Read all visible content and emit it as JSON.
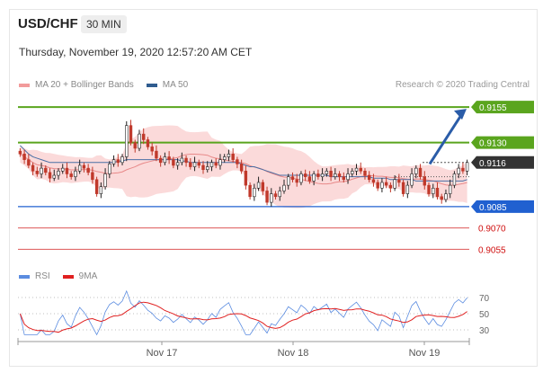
{
  "header": {
    "pair": "USD/CHF",
    "timeframe": "30 MIN",
    "datetime": "Thursday, November 19, 2020 12:57:20 AM CET"
  },
  "legend": {
    "ma20_label": "MA 20 + Bollinger Bands",
    "ma50_label": "MA 50",
    "research": "Research © 2020 Trading Central"
  },
  "rsi_legend": {
    "rsi_label": "RSI",
    "ma_label": "9MA"
  },
  "colors": {
    "bull": "#222222",
    "bear": "#c0392b",
    "bands": "#fbdada",
    "ma20": "#e06666",
    "ma50": "#4a6fa5",
    "resistance": "#5aa51e",
    "support": "#2060d0",
    "target": "#d01010",
    "current": "#333333",
    "rsi": "#5b8ce0",
    "rsi_ma": "#e02020",
    "arrow": "#2a5ca8"
  },
  "chart_data": [
    {
      "type": "candlestick",
      "yrange": [
        9047,
        9162
      ],
      "x_ticks": [
        "Nov 17",
        "Nov 18",
        "Nov 19"
      ],
      "price_levels": [
        {
          "value": "0.9155",
          "kind": "resistance"
        },
        {
          "value": "0.9130",
          "kind": "resistance"
        },
        {
          "value": "0.9116",
          "kind": "current"
        },
        {
          "value": "0.9085",
          "kind": "support"
        },
        {
          "value": "0.9070",
          "kind": "target"
        },
        {
          "value": "0.9055",
          "kind": "target"
        }
      ],
      "projection": {
        "from": 9115,
        "to": 9155
      },
      "closes": [
        9122,
        9118,
        9114,
        9110,
        9108,
        9112,
        9109,
        9105,
        9107,
        9110,
        9112,
        9108,
        9106,
        9110,
        9114,
        9112,
        9109,
        9104,
        9094,
        9099,
        9108,
        9115,
        9118,
        9116,
        9120,
        9142,
        9130,
        9126,
        9136,
        9132,
        9127,
        9124,
        9119,
        9116,
        9120,
        9118,
        9114,
        9116,
        9119,
        9116,
        9113,
        9116,
        9114,
        9111,
        9113,
        9116,
        9114,
        9118,
        9120,
        9122,
        9118,
        9115,
        9110,
        9100,
        9092,
        9098,
        9102,
        9096,
        9088,
        9094,
        9092,
        9096,
        9100,
        9106,
        9104,
        9102,
        9108,
        9106,
        9103,
        9108,
        9106,
        9108,
        9110,
        9106,
        9108,
        9106,
        9104,
        9108,
        9110,
        9112,
        9110,
        9107,
        9104,
        9102,
        9098,
        9102,
        9100,
        9098,
        9104,
        9102,
        9094,
        9100,
        9108,
        9112,
        9106,
        9100,
        9094,
        9098,
        9092,
        9090,
        9094,
        9100,
        9108,
        9112,
        9110,
        9116
      ],
      "ma50": [
        9128,
        9125,
        9122,
        9120,
        9119,
        9118,
        9117,
        9116,
        9116,
        9116,
        9116,
        9116,
        9116,
        9116,
        9116,
        9116,
        9116,
        9116,
        9116,
        9116,
        9116,
        9116,
        9116,
        9117,
        9117,
        9118,
        9118,
        9118,
        9118,
        9118,
        9118,
        9118,
        9118,
        9118,
        9118,
        9118,
        9118,
        9118,
        9117,
        9117,
        9116,
        9116,
        9116,
        9116,
        9116,
        9116,
        9116,
        9116,
        9116,
        9116,
        9116,
        9116,
        9115,
        9114,
        9113,
        9113,
        9112,
        9111,
        9110,
        9109,
        9108,
        9107,
        9107,
        9107,
        9107,
        9107,
        9107,
        9107,
        9107,
        9107,
        9107,
        9107,
        9107,
        9106,
        9106,
        9106,
        9106,
        9106,
        9106,
        9106,
        9106,
        9106,
        9106,
        9105,
        9105,
        9105,
        9105,
        9104,
        9104,
        9104,
        9104,
        9104,
        9104,
        9103,
        9103,
        9103,
        9103,
        9103,
        9103,
        9103,
        9103,
        9103,
        9103,
        9103,
        9103,
        9104
      ],
      "rsi_axis": [
        30,
        50,
        70
      ]
    }
  ]
}
